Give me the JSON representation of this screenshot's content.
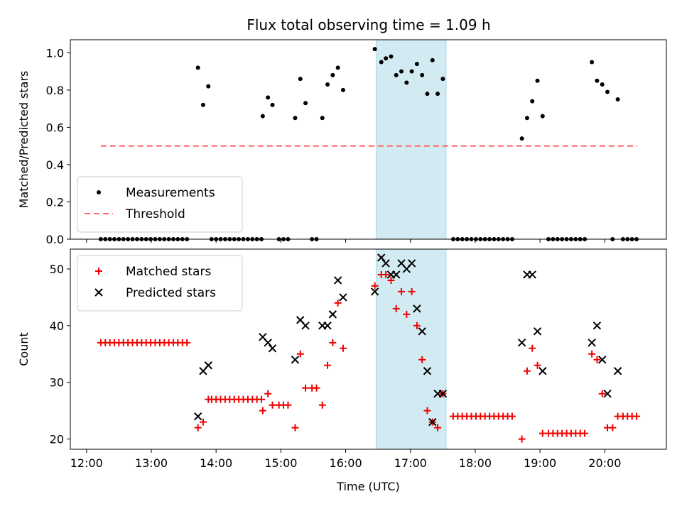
{
  "title": "Flux total observing time = 1.09 h",
  "colors": {
    "measurement": "#000000",
    "threshold": "#ff6666",
    "matched": "#ee0000",
    "predicted": "#000000",
    "shade": "#add8e6"
  },
  "chart_data": [
    {
      "type": "scatter",
      "ylabel": "Matched/Predicted stars",
      "xlabel": "",
      "xlim": [
        11.75,
        20.95
      ],
      "ylim": [
        0,
        1.07
      ],
      "yticks": [
        0.0,
        0.2,
        0.4,
        0.6,
        0.8,
        1.0
      ],
      "ytick_labels": [
        "0.0",
        "0.2",
        "0.4",
        "0.6",
        "0.8",
        "1.0"
      ],
      "shaded_x_range": [
        16.47,
        17.55
      ],
      "legend_position": "lower-left",
      "threshold": {
        "name": "Threshold",
        "y": 0.5,
        "x": [
          12.22,
          20.5
        ]
      },
      "series": [
        {
          "name": "Measurements",
          "points": [
            [
              12.22,
              0
            ],
            [
              12.29,
              0
            ],
            [
              12.36,
              0
            ],
            [
              12.43,
              0
            ],
            [
              12.5,
              0
            ],
            [
              12.57,
              0
            ],
            [
              12.64,
              0
            ],
            [
              12.71,
              0
            ],
            [
              12.78,
              0
            ],
            [
              12.85,
              0
            ],
            [
              12.92,
              0
            ],
            [
              12.99,
              0
            ],
            [
              13.06,
              0
            ],
            [
              13.13,
              0
            ],
            [
              13.2,
              0
            ],
            [
              13.27,
              0
            ],
            [
              13.34,
              0
            ],
            [
              13.41,
              0
            ],
            [
              13.48,
              0
            ],
            [
              13.55,
              0
            ],
            [
              13.72,
              0.92
            ],
            [
              13.8,
              0.72
            ],
            [
              13.88,
              0.82
            ],
            [
              13.93,
              0
            ],
            [
              14.0,
              0
            ],
            [
              14.07,
              0
            ],
            [
              14.14,
              0
            ],
            [
              14.21,
              0
            ],
            [
              14.28,
              0
            ],
            [
              14.35,
              0
            ],
            [
              14.42,
              0
            ],
            [
              14.49,
              0
            ],
            [
              14.56,
              0
            ],
            [
              14.63,
              0
            ],
            [
              14.7,
              0
            ],
            [
              14.72,
              0.66
            ],
            [
              14.8,
              0.76
            ],
            [
              14.87,
              0.72
            ],
            [
              14.97,
              0
            ],
            [
              15.04,
              0
            ],
            [
              15.11,
              0
            ],
            [
              15.22,
              0.65
            ],
            [
              15.3,
              0.86
            ],
            [
              15.38,
              0.73
            ],
            [
              15.48,
              0
            ],
            [
              15.55,
              0
            ],
            [
              15.64,
              0.65
            ],
            [
              15.72,
              0.83
            ],
            [
              15.8,
              0.88
            ],
            [
              15.88,
              0.92
            ],
            [
              15.96,
              0.8
            ],
            [
              16.45,
              1.02
            ],
            [
              16.55,
              0.95
            ],
            [
              16.62,
              0.97
            ],
            [
              16.7,
              0.98
            ],
            [
              16.78,
              0.88
            ],
            [
              16.86,
              0.9
            ],
            [
              16.94,
              0.84
            ],
            [
              17.02,
              0.9
            ],
            [
              17.1,
              0.94
            ],
            [
              17.18,
              0.88
            ],
            [
              17.26,
              0.78
            ],
            [
              17.34,
              0.96
            ],
            [
              17.42,
              0.78
            ],
            [
              17.5,
              0.86
            ],
            [
              17.66,
              0
            ],
            [
              17.73,
              0
            ],
            [
              17.8,
              0
            ],
            [
              17.87,
              0
            ],
            [
              17.94,
              0
            ],
            [
              18.01,
              0
            ],
            [
              18.08,
              0
            ],
            [
              18.15,
              0
            ],
            [
              18.22,
              0
            ],
            [
              18.29,
              0
            ],
            [
              18.36,
              0
            ],
            [
              18.43,
              0
            ],
            [
              18.5,
              0
            ],
            [
              18.57,
              0
            ],
            [
              18.72,
              0.54
            ],
            [
              18.8,
              0.65
            ],
            [
              18.88,
              0.74
            ],
            [
              18.96,
              0.85
            ],
            [
              19.04,
              0.66
            ],
            [
              19.13,
              0
            ],
            [
              19.2,
              0
            ],
            [
              19.27,
              0
            ],
            [
              19.34,
              0
            ],
            [
              19.41,
              0
            ],
            [
              19.48,
              0
            ],
            [
              19.55,
              0
            ],
            [
              19.62,
              0
            ],
            [
              19.69,
              0
            ],
            [
              19.8,
              0.95
            ],
            [
              19.88,
              0.85
            ],
            [
              19.96,
              0.83
            ],
            [
              20.04,
              0.79
            ],
            [
              20.12,
              0
            ],
            [
              20.2,
              0.75
            ],
            [
              20.28,
              0
            ],
            [
              20.35,
              0
            ],
            [
              20.42,
              0
            ],
            [
              20.49,
              0
            ]
          ]
        }
      ]
    },
    {
      "type": "scatter",
      "ylabel": "Count",
      "xlabel": "Time (UTC)",
      "xlim": [
        11.75,
        20.95
      ],
      "ylim": [
        18.2,
        53.5
      ],
      "yticks": [
        20,
        30,
        40,
        50
      ],
      "ytick_labels": [
        "20",
        "30",
        "40",
        "50"
      ],
      "xticks": [
        12,
        13,
        14,
        15,
        16,
        17,
        18,
        19,
        20
      ],
      "xtick_labels": [
        "12:00",
        "13:00",
        "14:00",
        "15:00",
        "16:00",
        "17:00",
        "18:00",
        "19:00",
        "20:00"
      ],
      "shaded_x_range": [
        16.47,
        17.55
      ],
      "legend_position": "top-left",
      "series": [
        {
          "name": "Matched stars",
          "marker": "plus",
          "points": [
            [
              12.22,
              37
            ],
            [
              12.29,
              37
            ],
            [
              12.36,
              37
            ],
            [
              12.43,
              37
            ],
            [
              12.5,
              37
            ],
            [
              12.57,
              37
            ],
            [
              12.64,
              37
            ],
            [
              12.71,
              37
            ],
            [
              12.78,
              37
            ],
            [
              12.85,
              37
            ],
            [
              12.92,
              37
            ],
            [
              12.99,
              37
            ],
            [
              13.06,
              37
            ],
            [
              13.13,
              37
            ],
            [
              13.2,
              37
            ],
            [
              13.27,
              37
            ],
            [
              13.34,
              37
            ],
            [
              13.41,
              37
            ],
            [
              13.48,
              37
            ],
            [
              13.55,
              37
            ],
            [
              13.72,
              22
            ],
            [
              13.8,
              23
            ],
            [
              13.88,
              27
            ],
            [
              13.93,
              27
            ],
            [
              14.0,
              27
            ],
            [
              14.07,
              27
            ],
            [
              14.14,
              27
            ],
            [
              14.21,
              27
            ],
            [
              14.28,
              27
            ],
            [
              14.35,
              27
            ],
            [
              14.42,
              27
            ],
            [
              14.49,
              27
            ],
            [
              14.56,
              27
            ],
            [
              14.63,
              27
            ],
            [
              14.7,
              27
            ],
            [
              14.72,
              25
            ],
            [
              14.8,
              28
            ],
            [
              14.87,
              26
            ],
            [
              14.97,
              26
            ],
            [
              15.04,
              26
            ],
            [
              15.11,
              26
            ],
            [
              15.22,
              22
            ],
            [
              15.3,
              35
            ],
            [
              15.38,
              29
            ],
            [
              15.48,
              29
            ],
            [
              15.55,
              29
            ],
            [
              15.64,
              26
            ],
            [
              15.72,
              33
            ],
            [
              15.8,
              37
            ],
            [
              15.88,
              44
            ],
            [
              15.96,
              36
            ],
            [
              16.45,
              47
            ],
            [
              16.55,
              49
            ],
            [
              16.62,
              49
            ],
            [
              16.7,
              48
            ],
            [
              16.78,
              43
            ],
            [
              16.86,
              46
            ],
            [
              16.94,
              42
            ],
            [
              17.02,
              46
            ],
            [
              17.1,
              40
            ],
            [
              17.18,
              34
            ],
            [
              17.26,
              25
            ],
            [
              17.34,
              23
            ],
            [
              17.42,
              22
            ],
            [
              17.5,
              28
            ],
            [
              17.66,
              24
            ],
            [
              17.73,
              24
            ],
            [
              17.8,
              24
            ],
            [
              17.87,
              24
            ],
            [
              17.94,
              24
            ],
            [
              18.01,
              24
            ],
            [
              18.08,
              24
            ],
            [
              18.15,
              24
            ],
            [
              18.22,
              24
            ],
            [
              18.29,
              24
            ],
            [
              18.36,
              24
            ],
            [
              18.43,
              24
            ],
            [
              18.5,
              24
            ],
            [
              18.57,
              24
            ],
            [
              18.72,
              20
            ],
            [
              18.8,
              32
            ],
            [
              18.88,
              36
            ],
            [
              18.96,
              33
            ],
            [
              19.04,
              21
            ],
            [
              19.13,
              21
            ],
            [
              19.2,
              21
            ],
            [
              19.27,
              21
            ],
            [
              19.34,
              21
            ],
            [
              19.41,
              21
            ],
            [
              19.48,
              21
            ],
            [
              19.55,
              21
            ],
            [
              19.62,
              21
            ],
            [
              19.69,
              21
            ],
            [
              19.8,
              35
            ],
            [
              19.88,
              34
            ],
            [
              19.96,
              28
            ],
            [
              20.04,
              22
            ],
            [
              20.12,
              22
            ],
            [
              20.2,
              24
            ],
            [
              20.28,
              24
            ],
            [
              20.35,
              24
            ],
            [
              20.42,
              24
            ],
            [
              20.49,
              24
            ]
          ]
        },
        {
          "name": "Predicted stars",
          "marker": "x",
          "points": [
            [
              13.72,
              24
            ],
            [
              13.8,
              32
            ],
            [
              13.88,
              33
            ],
            [
              14.72,
              38
            ],
            [
              14.8,
              37
            ],
            [
              14.87,
              36
            ],
            [
              15.22,
              34
            ],
            [
              15.3,
              41
            ],
            [
              15.38,
              40
            ],
            [
              15.64,
              40
            ],
            [
              15.72,
              40
            ],
            [
              15.8,
              42
            ],
            [
              15.88,
              48
            ],
            [
              15.96,
              45
            ],
            [
              16.45,
              46
            ],
            [
              16.55,
              52
            ],
            [
              16.62,
              51
            ],
            [
              16.7,
              49
            ],
            [
              16.78,
              49
            ],
            [
              16.86,
              51
            ],
            [
              16.94,
              50
            ],
            [
              17.02,
              51
            ],
            [
              17.1,
              43
            ],
            [
              17.18,
              39
            ],
            [
              17.26,
              32
            ],
            [
              17.34,
              23
            ],
            [
              17.42,
              28
            ],
            [
              17.5,
              28
            ],
            [
              18.72,
              37
            ],
            [
              18.8,
              49
            ],
            [
              18.88,
              49
            ],
            [
              18.96,
              39
            ],
            [
              19.04,
              32
            ],
            [
              19.8,
              37
            ],
            [
              19.88,
              40
            ],
            [
              19.96,
              34
            ],
            [
              20.04,
              28
            ],
            [
              20.2,
              32
            ]
          ]
        }
      ]
    }
  ]
}
